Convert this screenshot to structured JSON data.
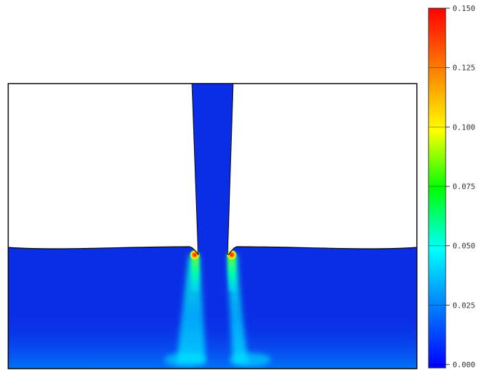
{
  "colorbar": {
    "ticks": [
      "0.150",
      "0.125",
      "0.100",
      "0.075",
      "0.050",
      "0.025",
      "0.000"
    ],
    "min": 0.0,
    "max": 0.15,
    "colormap": [
      "#0000ff",
      "#0077ff",
      "#00ffff",
      "#00ff00",
      "#ffff00",
      "#ff7f00",
      "#ff0000"
    ]
  },
  "field": {
    "background_color": "#0a2ee6",
    "frame_color": "#000000"
  }
}
